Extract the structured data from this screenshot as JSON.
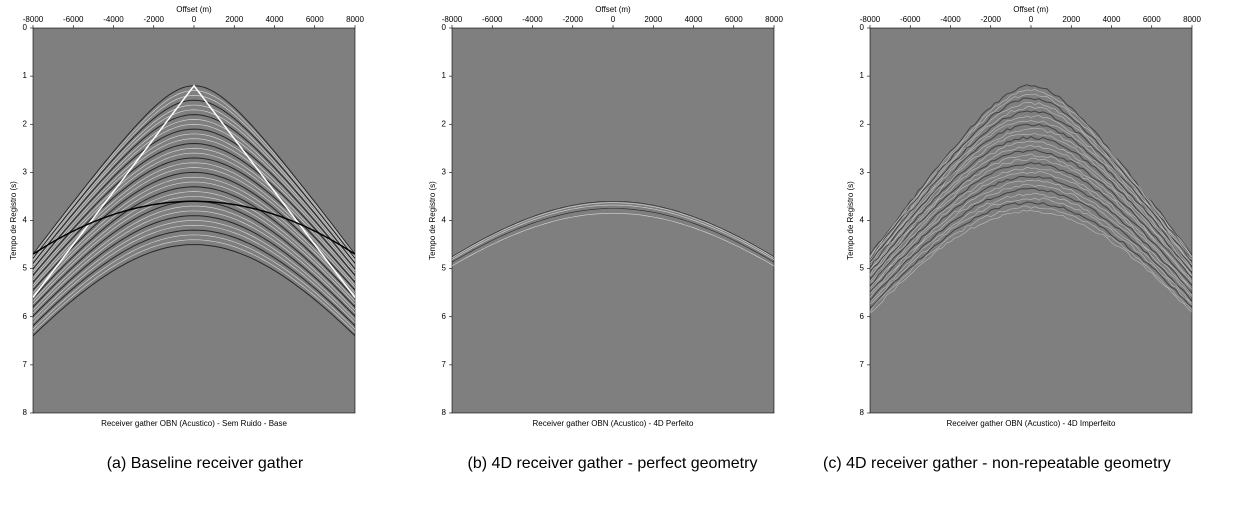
{
  "chart_data": [
    {
      "type": "seismic",
      "x_label": "Offset (m)",
      "y_label": "Tempo de Registro (s)",
      "title": "Receiver gather OBN (Acustico) - Sem Ruido - Base",
      "xlim": [
        -8000,
        8000
      ],
      "xticks": [
        -8000,
        -6000,
        -4000,
        -2000,
        0,
        2000,
        4000,
        6000,
        8000
      ],
      "ylim": [
        0,
        8
      ],
      "yticks": [
        0,
        1,
        2,
        3,
        4,
        5,
        6,
        7,
        8
      ]
    },
    {
      "type": "seismic",
      "x_label": "Offset (m)",
      "y_label": "Tempo de Registro (s)",
      "title": "Receiver gather OBN (Acustico) - 4D Perfeito",
      "xlim": [
        -8000,
        8000
      ],
      "xticks": [
        -8000,
        -6000,
        -4000,
        -2000,
        0,
        2000,
        4000,
        6000,
        8000
      ],
      "ylim": [
        0,
        8
      ],
      "yticks": [
        0,
        1,
        2,
        3,
        4,
        5,
        6,
        7,
        8
      ]
    },
    {
      "type": "seismic",
      "x_label": "Offset (m)",
      "y_label": "Tempo de Registro (s)",
      "title": "Receiver gather OBN (Acustico) - 4D Imperfeito",
      "xlim": [
        -8000,
        8000
      ],
      "xticks": [
        -8000,
        -6000,
        -4000,
        -2000,
        0,
        2000,
        4000,
        6000,
        8000
      ],
      "ylim": [
        0,
        8
      ],
      "yticks": [
        0,
        1,
        2,
        3,
        4,
        5,
        6,
        7,
        8
      ]
    }
  ],
  "captions": [
    "(a) Baseline receiver gather",
    "(b) 4D receiver gather - perfect geometry",
    "(c) 4D receiver gather - non-repeatable geometry"
  ]
}
